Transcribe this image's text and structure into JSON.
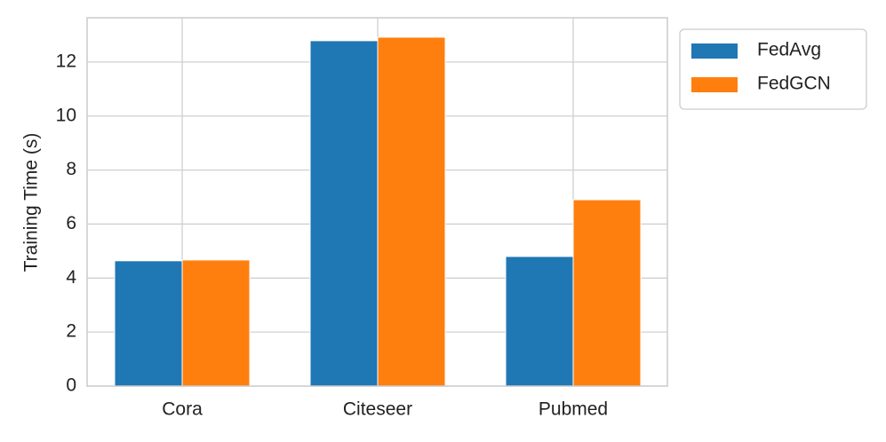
{
  "chart_data": {
    "type": "bar",
    "y_label": "Training Time (s)",
    "categories": [
      "Cora",
      "Citeseer",
      "Pubmed"
    ],
    "series": [
      {
        "name": "FedAvg",
        "color": "#1f77b4",
        "values": [
          4.64,
          12.79,
          4.8
        ]
      },
      {
        "name": "FedGCN",
        "color": "#ff7f0e",
        "values": [
          4.67,
          12.92,
          6.9
        ]
      }
    ],
    "ylim": [
      0,
      13.64
    ],
    "yticks": [
      0,
      2,
      4,
      6,
      8,
      10,
      12
    ],
    "grid": true,
    "legend": "outside upper right"
  }
}
